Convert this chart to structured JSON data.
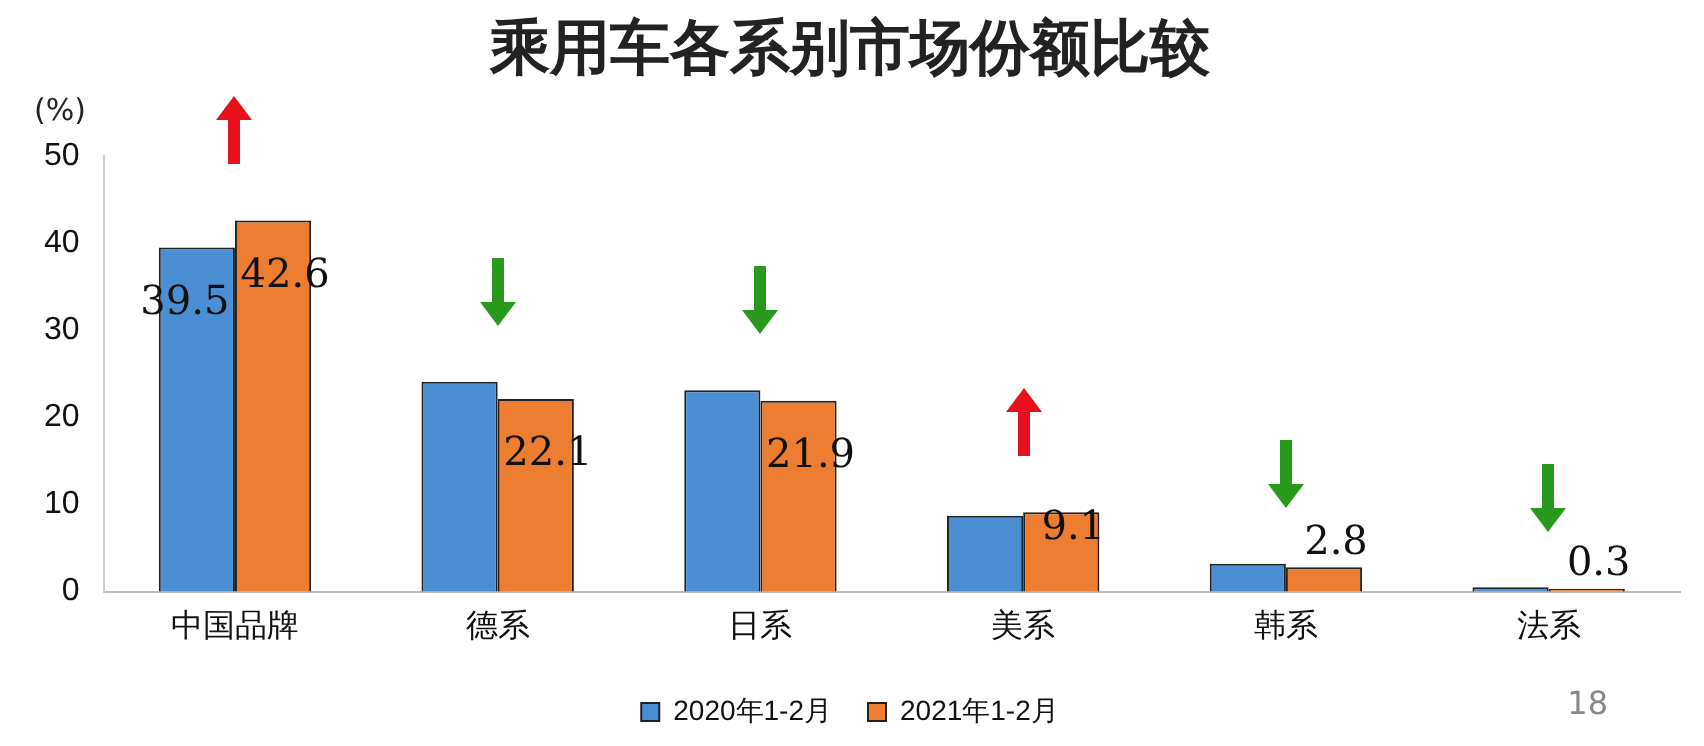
{
  "chart_data": {
    "type": "bar",
    "title": "乘用车各系别市场份额比较",
    "ylabel": "(%)",
    "categories": [
      "中国品牌",
      "德系",
      "日系",
      "美系",
      "韩系",
      "法系"
    ],
    "series": [
      {
        "name": "2020年1-2月",
        "color": "#4a8fd4",
        "values": [
          39.5,
          24.1,
          23.1,
          8.7,
          3.2,
          0.5
        ],
        "value_labels": [
          "39.5",
          null,
          null,
          null,
          null,
          null
        ]
      },
      {
        "name": "2021年1-2月",
        "color": "#ed7d31",
        "values": [
          42.6,
          22.1,
          21.9,
          9.1,
          2.8,
          0.3
        ],
        "value_labels": [
          "42.6",
          "22.1",
          "21.9",
          "9.1",
          "2.8",
          "0.3"
        ]
      }
    ],
    "ylim": [
      0,
      50
    ],
    "yticks": [
      0,
      10,
      20,
      30,
      40,
      50
    ],
    "grid": false,
    "legend": "bottom",
    "annotations": [
      "18"
    ]
  }
}
